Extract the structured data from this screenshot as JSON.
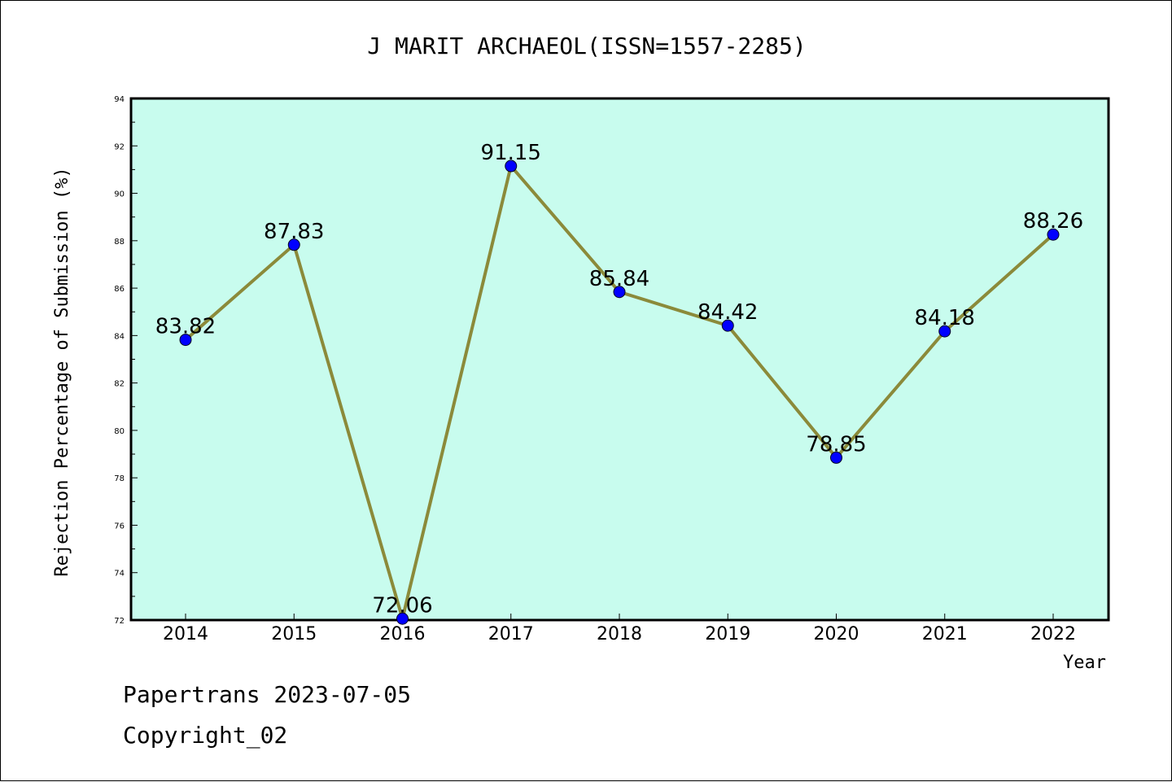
{
  "footer": {
    "line1": "Papertrans 2023-07-05",
    "line2": "Copyright_02"
  },
  "colors": {
    "plot_background": "#c8fcee",
    "line": "#8b8a3a",
    "marker": "#0000ff",
    "axis": "#000000"
  },
  "chart_data": {
    "type": "line",
    "title": "J MARIT ARCHAEOL(ISSN=1557-2285)",
    "xlabel": "Year",
    "ylabel": "Rejection Percentage of Submission (%)",
    "x": [
      "2014",
      "2015",
      "2016",
      "2017",
      "2018",
      "2019",
      "2020",
      "2021",
      "2022"
    ],
    "series": [
      {
        "values": [
          83.82,
          87.83,
          72.06,
          91.15,
          85.84,
          84.42,
          78.85,
          84.18,
          88.26
        ]
      }
    ],
    "data_labels": [
      "83.82",
      "87.83",
      "72.06",
      "91.15",
      "85.84",
      "84.42",
      "78.85",
      "84.18",
      "88.26"
    ],
    "ylim": [
      72,
      94
    ],
    "yticks": [
      "72",
      "74",
      "76",
      "78",
      "80",
      "82",
      "84",
      "86",
      "88",
      "90",
      "92",
      "94"
    ],
    "grid": false,
    "legend": "none"
  }
}
